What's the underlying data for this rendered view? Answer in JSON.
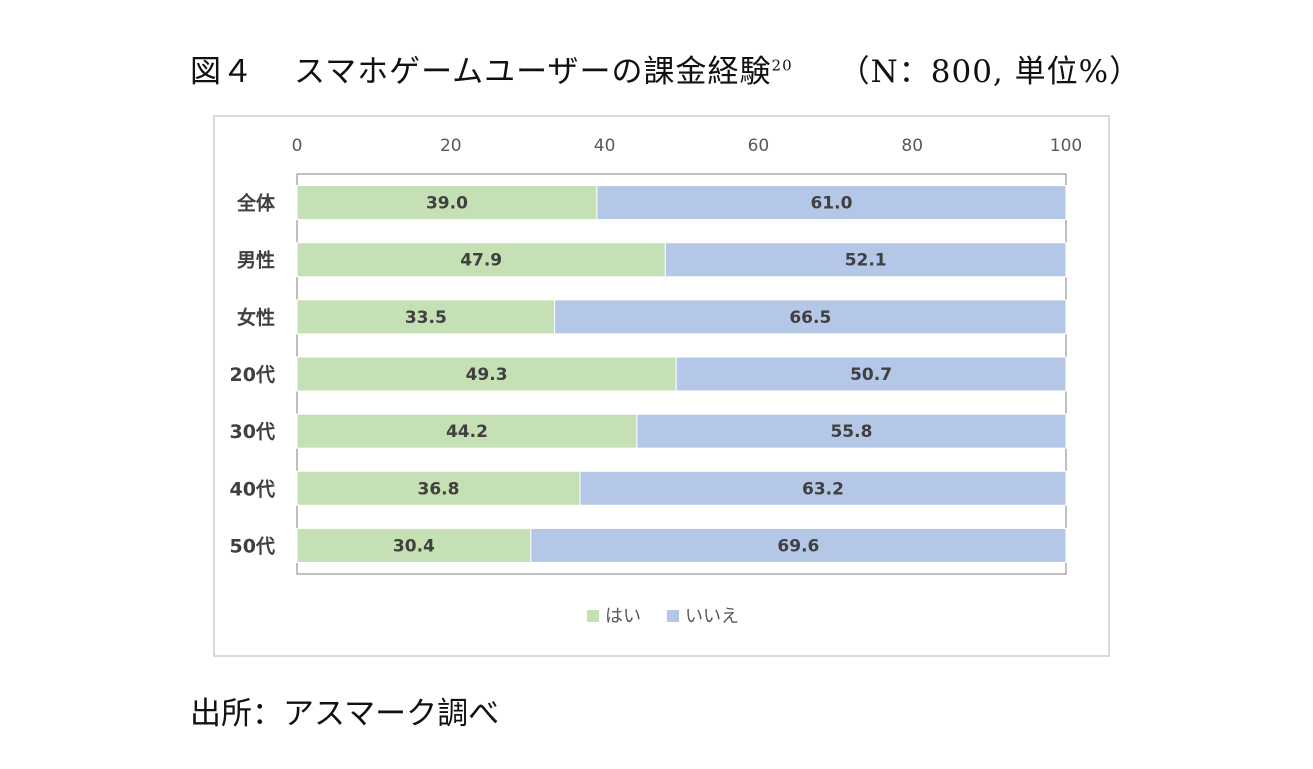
{
  "figure": {
    "label": "図４",
    "title": "スマホゲームユーザーの課金経験",
    "footnote": "20",
    "meta": "（N：800, 単位%）"
  },
  "source": "出所：アスマーク調べ",
  "chart_data": {
    "type": "bar",
    "orientation": "horizontal",
    "stacked": true,
    "categories": [
      "全体",
      "男性",
      "女性",
      "20代",
      "30代",
      "40代",
      "50代"
    ],
    "series": [
      {
        "name": "はい",
        "values": [
          39.0,
          47.9,
          33.5,
          49.3,
          44.2,
          36.8,
          30.4
        ],
        "color": "#c5e0b4"
      },
      {
        "name": "いいえ",
        "values": [
          61.0,
          52.1,
          66.5,
          50.7,
          55.8,
          63.2,
          69.6
        ],
        "color": "#b4c7e7"
      }
    ],
    "xticks": [
      "0",
      "20",
      "40",
      "60",
      "80",
      "100"
    ],
    "xlim": [
      0,
      100
    ],
    "x_axis_position": "top",
    "data_labels": true,
    "legend": "bottom",
    "grid": false
  }
}
